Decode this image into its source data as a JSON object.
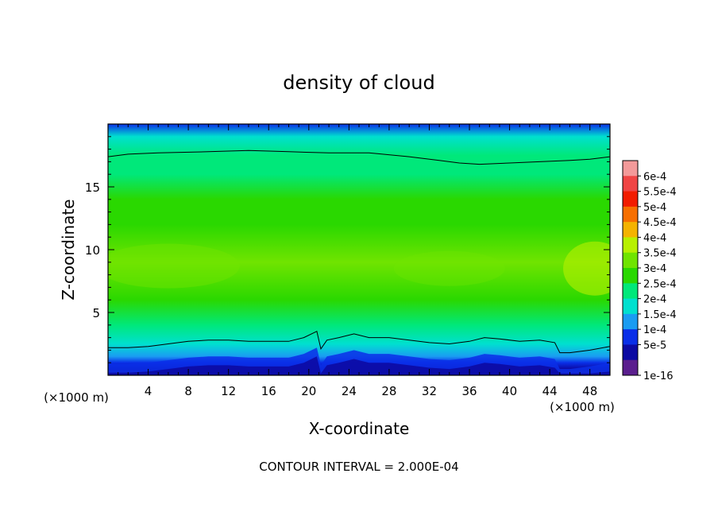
{
  "chart_data": {
    "type": "heatmap",
    "title": "density of cloud",
    "xlabel": "X-coordinate",
    "ylabel": "Z-coordinate",
    "x_unit_left": "(×1000 m)",
    "x_unit_right": "(×1000 m)",
    "xlim": [
      0,
      50
    ],
    "ylim": [
      0,
      20
    ],
    "x_ticks": [
      4,
      8,
      12,
      16,
      20,
      24,
      28,
      32,
      36,
      40,
      44,
      48
    ],
    "y_ticks": [
      5,
      10,
      15
    ],
    "footer": "CONTOUR INTERVAL = 2.000E-04",
    "contour_interval": 0.0002,
    "colorbar": {
      "labels": [
        "6e-4",
        "5.5e-4",
        "5e-4",
        "4.5e-4",
        "4e-4",
        "3.5e-4",
        "3e-4",
        "2.5e-4",
        "2e-4",
        "1.5e-4",
        "1e-4",
        "5e-5",
        "1e-16"
      ],
      "colors": [
        "#f39a9a",
        "#f04545",
        "#f21c00",
        "#f76f00",
        "#f4b300",
        "#b8f000",
        "#70e400",
        "#2ad800",
        "#00e87a",
        "#00e0cf",
        "#1a9cf2",
        "#0a2fe8",
        "#0c0aa3",
        "#5b1f8e"
      ]
    },
    "field_profile": {
      "z": [
        0,
        0.5,
        1,
        1.5,
        2.5,
        4,
        6,
        9,
        12,
        14,
        16,
        17.5,
        19,
        20
      ],
      "value": [
        0,
        1e-05,
        5e-05,
        0.0001,
        0.00015,
        0.0002,
        0.00025,
        0.0003,
        0.00028,
        0.00025,
        0.00022,
        0.0002,
        0.00015,
        8e-05
      ]
    },
    "contour_level": 0.0002,
    "contour_lower": {
      "x": [
        0,
        2,
        4,
        6,
        8,
        10,
        12,
        14,
        16,
        18,
        19.5,
        20.8,
        21.2,
        21.8,
        23,
        24.5,
        26,
        28,
        30,
        32,
        34,
        36,
        37.5,
        39,
        41,
        43,
        44.5,
        45,
        46,
        48,
        50
      ],
      "z": [
        2.2,
        2.2,
        2.3,
        2.5,
        2.7,
        2.8,
        2.8,
        2.7,
        2.7,
        2.7,
        3.0,
        3.5,
        2.1,
        2.8,
        3.0,
        3.3,
        3.0,
        3.0,
        2.8,
        2.6,
        2.5,
        2.7,
        3.0,
        2.9,
        2.7,
        2.8,
        2.6,
        1.8,
        1.8,
        2.0,
        2.3
      ]
    },
    "contour_upper": {
      "x": [
        0,
        2,
        5,
        10,
        14,
        18,
        22,
        26,
        30,
        33,
        35,
        37,
        40,
        43,
        46,
        48,
        50
      ],
      "z": [
        17.4,
        17.6,
        17.7,
        17.8,
        17.9,
        17.8,
        17.7,
        17.7,
        17.4,
        17.1,
        16.9,
        16.8,
        16.9,
        17.0,
        17.1,
        17.2,
        17.4
      ]
    }
  }
}
